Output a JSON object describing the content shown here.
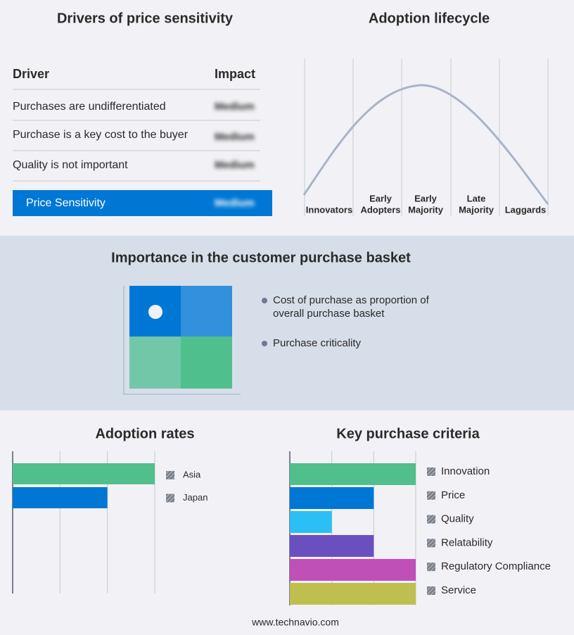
{
  "drivers": {
    "title": "Drivers of price sensitivity",
    "header": [
      "Driver",
      "Impact"
    ],
    "rows": [
      [
        "Purchases are undifferentiated",
        "Medium"
      ],
      [
        "Purchase is a key cost to the buyer",
        "Medium"
      ],
      [
        "Quality is not important",
        "Medium"
      ]
    ],
    "summary": [
      "Price Sensitivity",
      "Medium"
    ]
  },
  "lifecycle": {
    "title": "Adoption lifecycle",
    "stages": [
      [
        "Innovators"
      ],
      [
        "Early",
        "Adopters"
      ],
      [
        "Early",
        "Majority"
      ],
      [
        "Late",
        "Majority"
      ],
      [
        "Laggards"
      ]
    ]
  },
  "importance": {
    "title": "Importance in the customer purchase basket",
    "legend": [
      [
        "Cost of purchase as proportion of",
        "overall purchase basket"
      ],
      [
        "Purchase criticality"
      ]
    ]
  },
  "chart_data": [
    {
      "type": "bar",
      "orientation": "horizontal",
      "title": "Adoption rates",
      "categories": [
        "Asia",
        "Japan"
      ],
      "values": [
        3,
        2
      ],
      "colors": [
        "#50bf8c",
        "#0077d4"
      ],
      "xlim": [
        0,
        3
      ],
      "xticks": [
        0,
        1,
        2,
        3
      ],
      "grid": true
    },
    {
      "type": "bar",
      "orientation": "horizontal",
      "title": "Key purchase criteria",
      "categories": [
        "Innovation",
        "Price",
        "Quality",
        "Relatability",
        "Regulatory Compliance",
        "Service"
      ],
      "values": [
        3,
        2,
        1,
        2,
        3,
        3
      ],
      "colors": [
        "#50bf8c",
        "#0077d4",
        "#2bbff5",
        "#6a4fc0",
        "#c04fb8",
        "#bfbf50"
      ],
      "xlim": [
        0,
        3
      ],
      "xticks": [
        0,
        1,
        2,
        3
      ],
      "grid": true
    }
  ],
  "footer": "www.technavio.com"
}
